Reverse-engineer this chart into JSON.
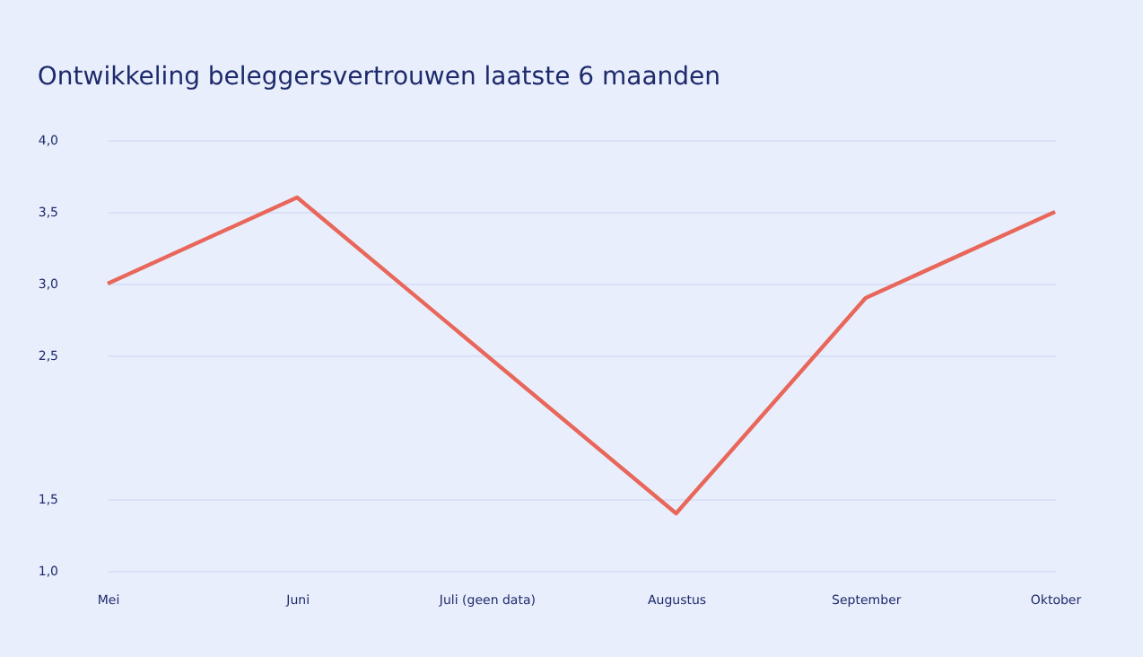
{
  "chart_data": {
    "type": "line",
    "title": "Ontwikkeling beleggersvertrouwen laatste 6 maanden",
    "categories": [
      "Mei",
      "Juni",
      "Juli (geen data)",
      "Augustus",
      "September",
      "Oktober"
    ],
    "series": [
      {
        "color": "#e8675a",
        "values": [
          3.0,
          3.6,
          null,
          1.4,
          2.9,
          3.5
        ]
      }
    ],
    "ylim": [
      1.0,
      4.0
    ],
    "yticks": [
      {
        "value": 4.0,
        "label": "4,0"
      },
      {
        "value": 3.5,
        "label": "3,5"
      },
      {
        "value": 3.0,
        "label": "3,0"
      },
      {
        "value": 2.5,
        "label": "2,5"
      },
      {
        "value": 1.5,
        "label": "1,5"
      },
      {
        "value": 1.0,
        "label": "1,0"
      }
    ],
    "grid": "y",
    "marker": "none",
    "line_style": "solid"
  }
}
